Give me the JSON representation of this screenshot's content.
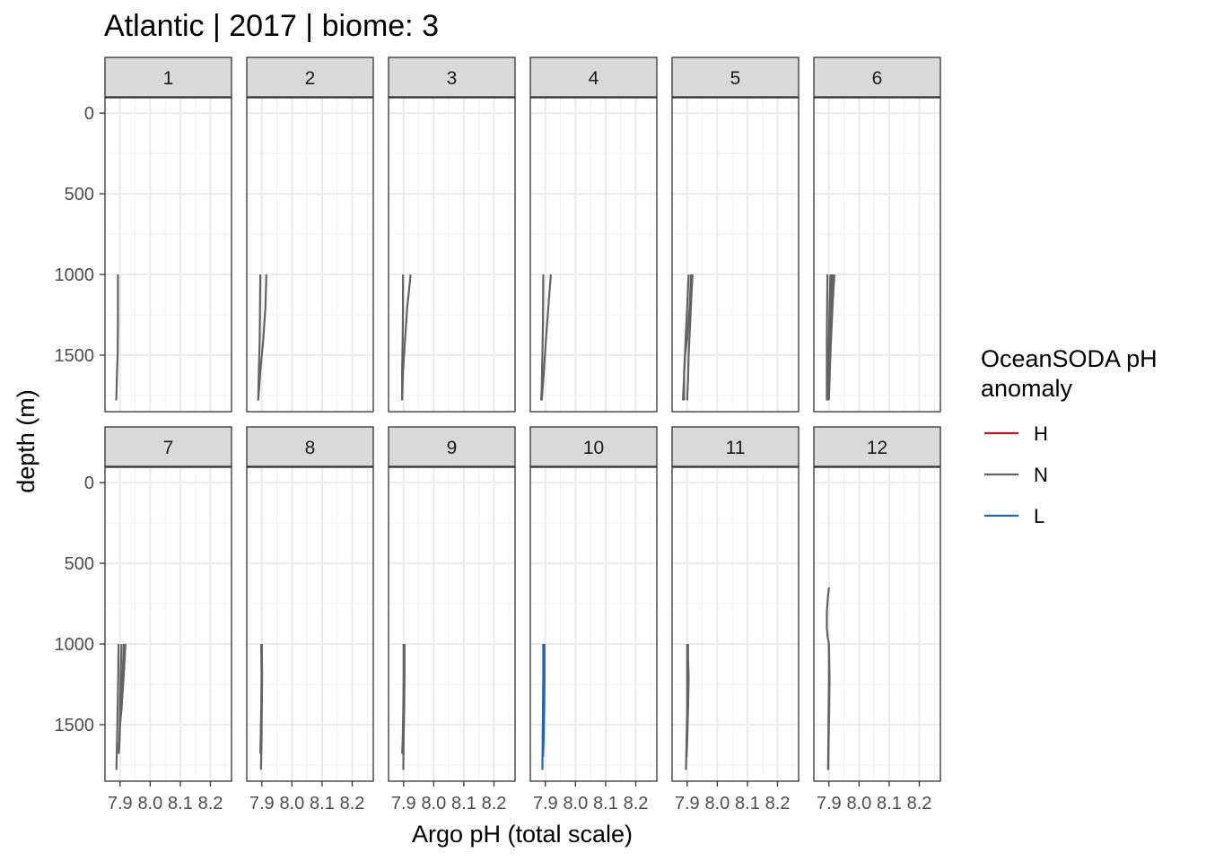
{
  "chart_data": {
    "type": "line",
    "title": "Atlantic | 2017 | biome: 3",
    "xlabel": "Argo pH (total scale)",
    "ylabel": "depth (m)",
    "facet_labels": [
      "1",
      "2",
      "3",
      "4",
      "5",
      "6",
      "7",
      "8",
      "9",
      "10",
      "11",
      "12"
    ],
    "x_ticks": [
      7.9,
      8.0,
      8.1,
      8.2
    ],
    "x_tick_labels": [
      "7.9",
      "8.0",
      "8.1",
      "8.2"
    ],
    "xlim": [
      7.85,
      8.27
    ],
    "y_ticks": [
      0,
      500,
      1000,
      1500
    ],
    "y_tick_labels": [
      "0",
      "500",
      "1000",
      "1500"
    ],
    "ylim": [
      1850,
      -95
    ],
    "y_reversed": true,
    "grid": true,
    "legend": {
      "title": "OceanSODA pH anomaly",
      "title_lines": [
        "OceanSODA pH",
        "anomaly"
      ],
      "position": "right",
      "entries": [
        {
          "label": "H",
          "color": "#b2182b"
        },
        {
          "label": "N",
          "color": "#636363"
        },
        {
          "label": "L",
          "color": "#2166ac"
        }
      ]
    },
    "panels": [
      {
        "month": "1",
        "series": [
          {
            "group": "N",
            "points": [
              [
                7.893,
                1000
              ],
              [
                7.893,
                1300
              ],
              [
                7.892,
                1500
              ],
              [
                7.89,
                1600
              ],
              [
                7.888,
                1750
              ],
              [
                7.887,
                1780
              ]
            ]
          }
        ]
      },
      {
        "month": "2",
        "series": [
          {
            "group": "N",
            "points": [
              [
                7.895,
                1000
              ],
              [
                7.894,
                1200
              ],
              [
                7.893,
                1400
              ],
              [
                7.89,
                1600
              ],
              [
                7.888,
                1780
              ]
            ]
          },
          {
            "group": "N",
            "points": [
              [
                7.915,
                1000
              ],
              [
                7.912,
                1200
              ],
              [
                7.905,
                1400
              ],
              [
                7.895,
                1600
              ],
              [
                7.888,
                1780
              ]
            ]
          }
        ]
      },
      {
        "month": "3",
        "series": [
          {
            "group": "N",
            "points": [
              [
                7.898,
                1000
              ],
              [
                7.898,
                1200
              ],
              [
                7.897,
                1400
              ],
              [
                7.895,
                1600
              ],
              [
                7.895,
                1780
              ]
            ]
          },
          {
            "group": "N",
            "points": [
              [
                7.923,
                1000
              ],
              [
                7.918,
                1100
              ],
              [
                7.912,
                1200
              ],
              [
                7.905,
                1400
              ],
              [
                7.898,
                1600
              ],
              [
                7.895,
                1780
              ]
            ]
          }
        ]
      },
      {
        "month": "4",
        "series": [
          {
            "group": "N",
            "points": [
              [
                7.893,
                1000
              ],
              [
                7.892,
                1300
              ],
              [
                7.89,
                1500
              ],
              [
                7.888,
                1700
              ],
              [
                7.886,
                1780
              ]
            ]
          },
          {
            "group": "N",
            "points": [
              [
                7.918,
                1000
              ],
              [
                7.91,
                1200
              ],
              [
                7.902,
                1400
              ],
              [
                7.895,
                1600
              ],
              [
                7.888,
                1780
              ]
            ]
          }
        ]
      },
      {
        "month": "5",
        "series": [
          {
            "group": "N",
            "points": [
              [
                7.905,
                1000
              ],
              [
                7.9,
                1200
              ],
              [
                7.895,
                1400
              ],
              [
                7.89,
                1600
              ],
              [
                7.89,
                1780
              ]
            ]
          },
          {
            "group": "N",
            "points": [
              [
                7.913,
                1000
              ],
              [
                7.908,
                1200
              ],
              [
                7.9,
                1400
              ],
              [
                7.893,
                1500
              ],
              [
                7.886,
                1780
              ]
            ]
          },
          {
            "group": "N",
            "points": [
              [
                7.918,
                1000
              ],
              [
                7.915,
                1100
              ],
              [
                7.91,
                1300
              ],
              [
                7.905,
                1500
              ],
              [
                7.903,
                1650
              ],
              [
                7.9,
                1780
              ]
            ]
          }
        ]
      },
      {
        "month": "6",
        "series": [
          {
            "group": "N",
            "points": [
              [
                7.895,
                1000
              ],
              [
                7.894,
                1200
              ],
              [
                7.893,
                1400
              ],
              [
                7.893,
                1600
              ],
              [
                7.893,
                1780
              ]
            ]
          },
          {
            "group": "N",
            "points": [
              [
                7.905,
                1000
              ],
              [
                7.902,
                1200
              ],
              [
                7.9,
                1400
              ],
              [
                7.898,
                1600
              ],
              [
                7.896,
                1780
              ]
            ]
          },
          {
            "group": "N",
            "points": [
              [
                7.91,
                1000
              ],
              [
                7.906,
                1200
              ],
              [
                7.903,
                1400
              ],
              [
                7.9,
                1600
              ],
              [
                7.898,
                1780
              ]
            ]
          },
          {
            "group": "N",
            "points": [
              [
                7.915,
                1000
              ],
              [
                7.91,
                1200
              ],
              [
                7.905,
                1400
              ],
              [
                7.9,
                1600
              ],
              [
                7.899,
                1780
              ]
            ]
          },
          {
            "group": "N",
            "points": [
              [
                7.918,
                1000
              ],
              [
                7.912,
                1200
              ],
              [
                7.907,
                1400
              ],
              [
                7.903,
                1600
              ],
              [
                7.9,
                1780
              ]
            ]
          }
        ]
      },
      {
        "month": "7",
        "series": [
          {
            "group": "N",
            "points": [
              [
                7.895,
                1000
              ],
              [
                7.894,
                1200
              ],
              [
                7.892,
                1400
              ],
              [
                7.89,
                1600
              ],
              [
                7.888,
                1780
              ]
            ]
          },
          {
            "group": "N",
            "points": [
              [
                7.905,
                1000
              ],
              [
                7.902,
                1200
              ],
              [
                7.9,
                1400
              ],
              [
                7.898,
                1600
              ],
              [
                7.896,
                1680
              ]
            ]
          },
          {
            "group": "N",
            "points": [
              [
                7.913,
                1000
              ],
              [
                7.908,
                1200
              ],
              [
                7.902,
                1400
              ],
              [
                7.898,
                1600
              ],
              [
                7.895,
                1680
              ]
            ]
          },
          {
            "group": "N",
            "points": [
              [
                7.918,
                1000
              ],
              [
                7.912,
                1200
              ],
              [
                7.905,
                1400
              ],
              [
                7.9,
                1500
              ]
            ]
          }
        ]
      },
      {
        "month": "8",
        "series": [
          {
            "group": "N",
            "points": [
              [
                7.898,
                1000
              ],
              [
                7.899,
                1200
              ],
              [
                7.898,
                1400
              ],
              [
                7.897,
                1500
              ],
              [
                7.895,
                1680
              ]
            ]
          },
          {
            "group": "N",
            "points": [
              [
                7.9,
                1000
              ],
              [
                7.901,
                1200
              ],
              [
                7.9,
                1400
              ],
              [
                7.899,
                1600
              ],
              [
                7.897,
                1780
              ]
            ]
          }
        ]
      },
      {
        "month": "9",
        "series": [
          {
            "group": "N",
            "points": [
              [
                7.9,
                1000
              ],
              [
                7.9,
                1200
              ],
              [
                7.899,
                1400
              ],
              [
                7.897,
                1600
              ],
              [
                7.895,
                1680
              ]
            ]
          },
          {
            "group": "N",
            "points": [
              [
                7.903,
                1000
              ],
              [
                7.903,
                1200
              ],
              [
                7.902,
                1400
              ],
              [
                7.9,
                1600
              ],
              [
                7.899,
                1780
              ]
            ]
          }
        ]
      },
      {
        "month": "10",
        "series": [
          {
            "group": "L",
            "points": [
              [
                7.893,
                1000
              ],
              [
                7.893,
                1200
              ],
              [
                7.892,
                1400
              ],
              [
                7.891,
                1600
              ],
              [
                7.89,
                1780
              ]
            ]
          },
          {
            "group": "L",
            "points": [
              [
                7.897,
                1000
              ],
              [
                7.897,
                1200
              ],
              [
                7.896,
                1400
              ],
              [
                7.894,
                1600
              ],
              [
                7.892,
                1700
              ]
            ]
          }
        ]
      },
      {
        "month": "11",
        "series": [
          {
            "group": "N",
            "points": [
              [
                7.9,
                1000
              ],
              [
                7.9,
                1200
              ],
              [
                7.9,
                1400
              ],
              [
                7.898,
                1600
              ],
              [
                7.896,
                1780
              ]
            ]
          },
          {
            "group": "N",
            "points": [
              [
                7.903,
                1000
              ],
              [
                7.903,
                1100
              ],
              [
                7.905,
                1200
              ],
              [
                7.903,
                1400
              ],
              [
                7.9,
                1600
              ],
              [
                7.898,
                1700
              ]
            ]
          }
        ]
      },
      {
        "month": "12",
        "series": [
          {
            "group": "N",
            "points": [
              [
                7.9,
                650
              ],
              [
                7.897,
                700
              ],
              [
                7.893,
                800
              ],
              [
                7.893,
                900
              ],
              [
                7.896,
                960
              ],
              [
                7.9,
                1000
              ],
              [
                7.9,
                1200
              ],
              [
                7.899,
                1400
              ],
              [
                7.898,
                1600
              ],
              [
                7.897,
                1780
              ]
            ]
          },
          {
            "group": "N",
            "points": [
              [
                7.9,
                1000
              ],
              [
                7.902,
                1200
              ],
              [
                7.901,
                1400
              ],
              [
                7.899,
                1600
              ],
              [
                7.898,
                1780
              ]
            ]
          }
        ]
      }
    ]
  }
}
